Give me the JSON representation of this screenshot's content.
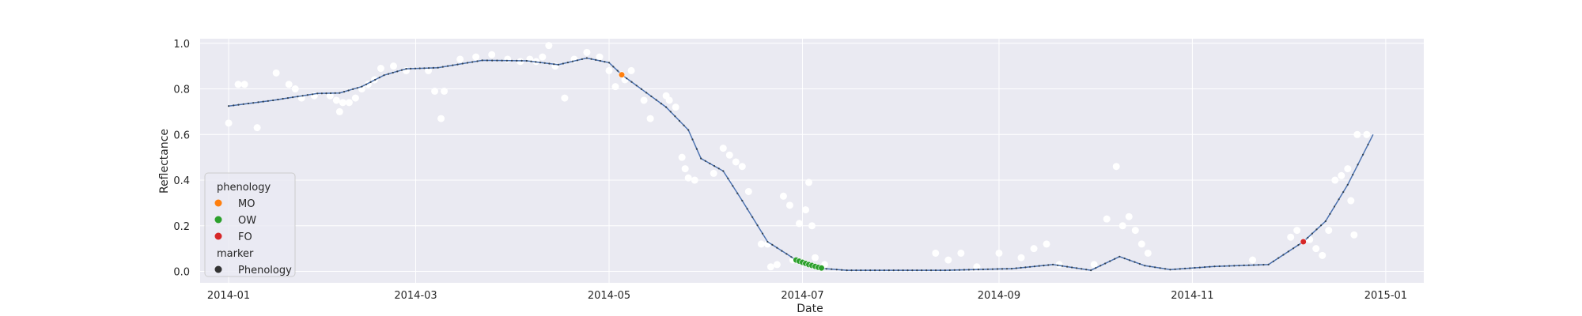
{
  "chart_data": {
    "type": "scatter",
    "title": "",
    "xlabel": "Date",
    "ylabel": "Reflectance",
    "x_ticks": [
      "2014-01",
      "2014-03",
      "2014-05",
      "2014-07",
      "2014-09",
      "2014-11",
      "2015-01"
    ],
    "y_ticks": [
      "0.0",
      "0.2",
      "0.4",
      "0.6",
      "0.8",
      "1.0"
    ],
    "xlim": [
      "2013-12-23",
      "2015-01-13"
    ],
    "ylim": [
      -0.05,
      1.02
    ],
    "grid": true,
    "legend": {
      "placement": "lower-left",
      "hue_title": "phenology",
      "marker_title": "marker",
      "entries": [
        {
          "label": "MO",
          "color": "#ff7f0e"
        },
        {
          "label": "OW",
          "color": "#2ca02c"
        },
        {
          "label": "FO",
          "color": "#d62728"
        }
      ],
      "marker_entries": [
        {
          "label": "Phenology",
          "color": "#333333"
        }
      ]
    },
    "colors": {
      "background": "#eaeaf2",
      "grid": "#ffffff",
      "curve": "#4c72b0",
      "curve_dots": "#2f3f4f",
      "observations": "#ffffff"
    },
    "curve": [
      [
        "2014-01-01",
        0.725
      ],
      [
        "2014-01-15",
        0.75
      ],
      [
        "2014-01-29",
        0.78
      ],
      [
        "2014-02-05",
        0.782
      ],
      [
        "2014-02-12",
        0.81
      ],
      [
        "2014-02-19",
        0.86
      ],
      [
        "2014-02-26",
        0.888
      ],
      [
        "2014-03-08",
        0.893
      ],
      [
        "2014-03-22",
        0.925
      ],
      [
        "2014-04-05",
        0.923
      ],
      [
        "2014-04-15",
        0.906
      ],
      [
        "2014-04-24",
        0.935
      ],
      [
        "2014-05-01",
        0.915
      ],
      [
        "2014-05-05",
        0.862
      ],
      [
        "2014-05-19",
        0.72
      ],
      [
        "2014-05-26",
        0.62
      ],
      [
        "2014-05-30",
        0.495
      ],
      [
        "2014-06-06",
        0.44
      ],
      [
        "2014-06-12",
        0.31
      ],
      [
        "2014-06-20",
        0.13
      ],
      [
        "2014-06-29",
        0.05
      ],
      [
        "2014-07-07",
        0.013
      ],
      [
        "2014-07-15",
        0.005
      ],
      [
        "2014-08-15",
        0.005
      ],
      [
        "2014-09-05",
        0.012
      ],
      [
        "2014-09-18",
        0.03
      ],
      [
        "2014-09-30",
        0.005
      ],
      [
        "2014-10-09",
        0.065
      ],
      [
        "2014-10-17",
        0.025
      ],
      [
        "2014-10-25",
        0.008
      ],
      [
        "2014-11-08",
        0.022
      ],
      [
        "2014-11-25",
        0.03
      ],
      [
        "2014-12-06",
        0.13
      ],
      [
        "2014-12-13",
        0.22
      ],
      [
        "2014-12-20",
        0.38
      ],
      [
        "2014-12-28",
        0.6
      ]
    ],
    "observations": [
      [
        "2014-01-01",
        0.65
      ],
      [
        "2014-01-04",
        0.82
      ],
      [
        "2014-01-06",
        0.82
      ],
      [
        "2014-01-10",
        0.63
      ],
      [
        "2014-01-16",
        0.87
      ],
      [
        "2014-01-20",
        0.82
      ],
      [
        "2014-01-22",
        0.8
      ],
      [
        "2014-01-24",
        0.76
      ],
      [
        "2014-01-28",
        0.77
      ],
      [
        "2014-02-02",
        0.77
      ],
      [
        "2014-02-04",
        0.75
      ],
      [
        "2014-02-05",
        0.7
      ],
      [
        "2014-02-06",
        0.74
      ],
      [
        "2014-02-08",
        0.74
      ],
      [
        "2014-02-10",
        0.76
      ],
      [
        "2014-02-12",
        0.8
      ],
      [
        "2014-02-14",
        0.82
      ],
      [
        "2014-02-16",
        0.84
      ],
      [
        "2014-02-18",
        0.89
      ],
      [
        "2014-02-22",
        0.9
      ],
      [
        "2014-02-26",
        0.88
      ],
      [
        "2014-03-05",
        0.88
      ],
      [
        "2014-03-07",
        0.79
      ],
      [
        "2014-03-09",
        0.67
      ],
      [
        "2014-03-10",
        0.79
      ],
      [
        "2014-03-15",
        0.93
      ],
      [
        "2014-03-20",
        0.94
      ],
      [
        "2014-03-25",
        0.95
      ],
      [
        "2014-03-30",
        0.93
      ],
      [
        "2014-04-03",
        0.92
      ],
      [
        "2014-04-06",
        0.93
      ],
      [
        "2014-04-08",
        0.92
      ],
      [
        "2014-04-10",
        0.94
      ],
      [
        "2014-04-12",
        0.99
      ],
      [
        "2014-04-14",
        0.9
      ],
      [
        "2014-04-17",
        0.76
      ],
      [
        "2014-04-20",
        0.93
      ],
      [
        "2014-04-24",
        0.96
      ],
      [
        "2014-04-28",
        0.94
      ],
      [
        "2014-05-01",
        0.88
      ],
      [
        "2014-05-03",
        0.81
      ],
      [
        "2014-05-06",
        0.84
      ],
      [
        "2014-05-08",
        0.88
      ],
      [
        "2014-05-12",
        0.75
      ],
      [
        "2014-05-14",
        0.67
      ],
      [
        "2014-05-19",
        0.77
      ],
      [
        "2014-05-20",
        0.75
      ],
      [
        "2014-05-22",
        0.72
      ],
      [
        "2014-05-24",
        0.5
      ],
      [
        "2014-05-25",
        0.45
      ],
      [
        "2014-05-26",
        0.41
      ],
      [
        "2014-05-28",
        0.4
      ],
      [
        "2014-06-03",
        0.43
      ],
      [
        "2014-06-06",
        0.54
      ],
      [
        "2014-06-08",
        0.51
      ],
      [
        "2014-06-10",
        0.48
      ],
      [
        "2014-06-12",
        0.46
      ],
      [
        "2014-06-14",
        0.35
      ],
      [
        "2014-06-18",
        0.12
      ],
      [
        "2014-06-20",
        0.12
      ],
      [
        "2014-06-21",
        0.02
      ],
      [
        "2014-06-23",
        0.03
      ],
      [
        "2014-06-25",
        0.33
      ],
      [
        "2014-06-27",
        0.29
      ],
      [
        "2014-06-28",
        0.05
      ],
      [
        "2014-06-30",
        0.21
      ],
      [
        "2014-07-02",
        0.27
      ],
      [
        "2014-07-03",
        0.39
      ],
      [
        "2014-07-04",
        0.2
      ],
      [
        "2014-07-05",
        0.06
      ],
      [
        "2014-07-08",
        0.03
      ],
      [
        "2014-08-12",
        0.08
      ],
      [
        "2014-08-16",
        0.05
      ],
      [
        "2014-08-20",
        0.08
      ],
      [
        "2014-08-25",
        0.02
      ],
      [
        "2014-09-01",
        0.08
      ],
      [
        "2014-09-08",
        0.06
      ],
      [
        "2014-09-12",
        0.1
      ],
      [
        "2014-09-16",
        0.12
      ],
      [
        "2014-09-20",
        0.03
      ],
      [
        "2014-10-01",
        0.03
      ],
      [
        "2014-10-05",
        0.23
      ],
      [
        "2014-10-08",
        0.46
      ],
      [
        "2014-10-10",
        0.2
      ],
      [
        "2014-10-12",
        0.24
      ],
      [
        "2014-10-14",
        0.18
      ],
      [
        "2014-10-16",
        0.12
      ],
      [
        "2014-10-18",
        0.08
      ],
      [
        "2014-11-20",
        0.05
      ],
      [
        "2014-12-02",
        0.15
      ],
      [
        "2014-12-04",
        0.18
      ],
      [
        "2014-12-08",
        0.14
      ],
      [
        "2014-12-10",
        0.1
      ],
      [
        "2014-12-12",
        0.07
      ],
      [
        "2014-12-14",
        0.18
      ],
      [
        "2014-12-16",
        0.4
      ],
      [
        "2014-12-18",
        0.42
      ],
      [
        "2014-12-20",
        0.45
      ],
      [
        "2014-12-21",
        0.31
      ],
      [
        "2014-12-22",
        0.16
      ],
      [
        "2014-12-23",
        0.6
      ],
      [
        "2014-12-26",
        0.6
      ]
    ],
    "phenology_points": [
      {
        "label": "MO",
        "points": [
          [
            "2014-05-05",
            0.862
          ]
        ]
      },
      {
        "label": "OW",
        "points": [
          [
            "2014-06-29",
            0.05
          ],
          [
            "2014-06-30",
            0.045
          ],
          [
            "2014-07-01",
            0.04
          ],
          [
            "2014-07-02",
            0.035
          ],
          [
            "2014-07-03",
            0.03
          ],
          [
            "2014-07-04",
            0.026
          ],
          [
            "2014-07-05",
            0.022
          ],
          [
            "2014-07-06",
            0.018
          ],
          [
            "2014-07-07",
            0.015
          ]
        ]
      },
      {
        "label": "FO",
        "points": [
          [
            "2014-12-06",
            0.13
          ]
        ]
      }
    ]
  }
}
